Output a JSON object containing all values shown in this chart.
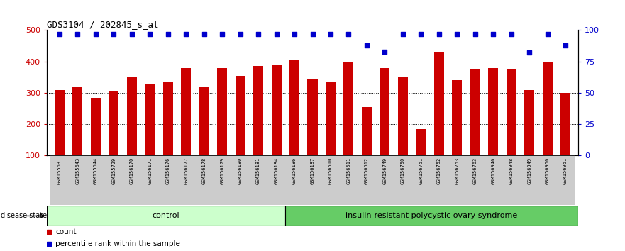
{
  "title": "GDS3104 / 202845_s_at",
  "samples": [
    "GSM155631",
    "GSM155643",
    "GSM155644",
    "GSM155729",
    "GSM156170",
    "GSM156171",
    "GSM156176",
    "GSM156177",
    "GSM156178",
    "GSM156179",
    "GSM156180",
    "GSM156181",
    "GSM156184",
    "GSM156186",
    "GSM156187",
    "GSM156510",
    "GSM156511",
    "GSM156512",
    "GSM156749",
    "GSM156750",
    "GSM156751",
    "GSM156752",
    "GSM156753",
    "GSM156763",
    "GSM156946",
    "GSM156948",
    "GSM156949",
    "GSM156950",
    "GSM156951"
  ],
  "bar_values": [
    310,
    318,
    285,
    305,
    350,
    330,
    335,
    380,
    320,
    380,
    355,
    385,
    390,
    405,
    345,
    335,
    400,
    255,
    380,
    350,
    185,
    430,
    340,
    375,
    380,
    375,
    310,
    400,
    300
  ],
  "percentile_values": [
    97,
    97,
    97,
    97,
    97,
    97,
    97,
    97,
    97,
    97,
    97,
    97,
    97,
    97,
    97,
    97,
    97,
    88,
    83,
    97,
    97,
    97,
    97,
    97,
    97,
    97,
    82,
    97,
    88
  ],
  "control_count": 13,
  "disease_count": 16,
  "group_labels": [
    "control",
    "insulin-resistant polycystic ovary syndrome"
  ],
  "group_color_ctrl": "#ccffcc",
  "group_color_dis": "#66cc66",
  "bar_color": "#cc0000",
  "dot_color": "#0000cc",
  "ylim_left": [
    100,
    500
  ],
  "ylim_right": [
    0,
    100
  ],
  "yticks_left": [
    100,
    200,
    300,
    400,
    500
  ],
  "yticks_right": [
    0,
    25,
    50,
    75,
    100
  ],
  "bg_color": "#ffffff",
  "tick_label_color_left": "#cc0000",
  "tick_label_color_right": "#0000cc",
  "legend_count_label": "count",
  "legend_percentile_label": "percentile rank within the sample",
  "disease_state_label": "disease state"
}
